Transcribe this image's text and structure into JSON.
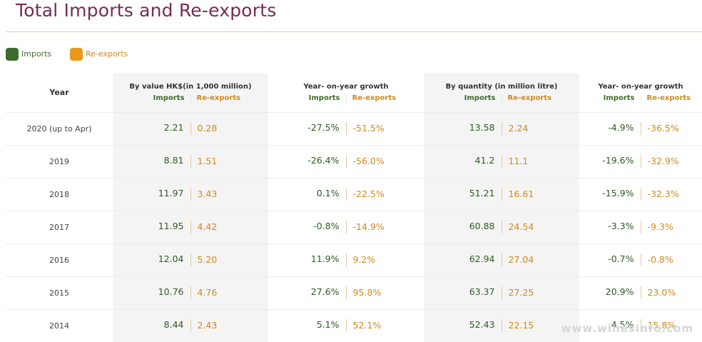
{
  "title": "Total Imports and Re-exports",
  "legend": {
    "imports_label": "Imports",
    "reexports_label": "Re-exports",
    "imports_color": "#3d6b2e",
    "reexports_color": "#e89a1e"
  },
  "table": {
    "year_header": "Year",
    "groups": [
      {
        "title": "By value HK$(in 1,000 million)",
        "sub_imports": "Imports",
        "sub_reexports": "Re-exports"
      },
      {
        "title": "Year- on-year growth",
        "sub_imports": "Imports",
        "sub_reexports": "Re-exports"
      },
      {
        "title": "By quantity (in million litre)",
        "sub_imports": "Imports",
        "sub_reexports": "Re-exports"
      },
      {
        "title": "Year- on-year growth",
        "sub_imports": "Imports",
        "sub_reexports": "Re-exports"
      }
    ],
    "rows": [
      {
        "year": "2020 (up to Apr)",
        "value_imp": "2.21",
        "value_rex": "0.28",
        "vgrow_imp": "-27.5%",
        "vgrow_rex": "-51.5%",
        "qty_imp": "13.58",
        "qty_rex": "2.24",
        "qgrow_imp": "-4.9%",
        "qgrow_rex": "-36.5%"
      },
      {
        "year": "2019",
        "value_imp": "8.81",
        "value_rex": "1.51",
        "vgrow_imp": "-26.4%",
        "vgrow_rex": "-56.0%",
        "qty_imp": "41.2",
        "qty_rex": "11.1",
        "qgrow_imp": "-19.6%",
        "qgrow_rex": "-32.9%"
      },
      {
        "year": "2018",
        "value_imp": "11.97",
        "value_rex": "3.43",
        "vgrow_imp": "0.1%",
        "vgrow_rex": "-22.5%",
        "qty_imp": "51.21",
        "qty_rex": "16.61",
        "qgrow_imp": "-15.9%",
        "qgrow_rex": "-32.3%"
      },
      {
        "year": "2017",
        "value_imp": "11.95",
        "value_rex": "4.42",
        "vgrow_imp": "-0.8%",
        "vgrow_rex": "-14.9%",
        "qty_imp": "60.88",
        "qty_rex": "24.54",
        "qgrow_imp": "-3.3%",
        "qgrow_rex": "-9.3%"
      },
      {
        "year": "2016",
        "value_imp": "12.04",
        "value_rex": "5.20",
        "vgrow_imp": "11.9%",
        "vgrow_rex": "9.2%",
        "qty_imp": "62.94",
        "qty_rex": "27.04",
        "qgrow_imp": "-0.7%",
        "qgrow_rex": "-0.8%"
      },
      {
        "year": "2015",
        "value_imp": "10.76",
        "value_rex": "4.76",
        "vgrow_imp": "27.6%",
        "vgrow_rex": "95.8%",
        "qty_imp": "63.37",
        "qty_rex": "27.25",
        "qgrow_imp": "20.9%",
        "qgrow_rex": "23.0%"
      },
      {
        "year": "2014",
        "value_imp": "8.44",
        "value_rex": "2.43",
        "vgrow_imp": "5.1%",
        "vgrow_rex": "52.1%",
        "qty_imp": "52.43",
        "qty_rex": "22.15",
        "qgrow_imp": "4.5%",
        "qgrow_rex": "15.8%"
      }
    ]
  },
  "watermark": "www.winesinfo.com",
  "chart_data": {
    "type": "table",
    "title": "Total Imports and Re-exports",
    "columns": [
      "Year",
      "By value HK$(in 1,000 million) Imports",
      "By value HK$(in 1,000 million) Re-exports",
      "Year- on-year growth Imports",
      "Year- on-year growth Re-exports",
      "By quantity (in million litre) Imports",
      "By quantity (in million litre) Re-exports",
      "Year- on-year growth Imports",
      "Year- on-year growth Re-exports"
    ],
    "rows": [
      [
        "2020 (up to Apr)",
        2.21,
        0.28,
        -27.5,
        -51.5,
        13.58,
        2.24,
        -4.9,
        -36.5
      ],
      [
        "2019",
        8.81,
        1.51,
        -26.4,
        -56.0,
        41.2,
        11.1,
        -19.6,
        -32.9
      ],
      [
        "2018",
        11.97,
        3.43,
        0.1,
        -22.5,
        51.21,
        16.61,
        -15.9,
        -32.3
      ],
      [
        "2017",
        11.95,
        4.42,
        -0.8,
        -14.9,
        60.88,
        24.54,
        -3.3,
        -9.3
      ],
      [
        "2016",
        12.04,
        5.2,
        11.9,
        9.2,
        62.94,
        27.04,
        -0.7,
        -0.8
      ],
      [
        "2015",
        10.76,
        4.76,
        27.6,
        95.8,
        63.37,
        27.25,
        20.9,
        23.0
      ],
      [
        "2014",
        8.44,
        2.43,
        5.1,
        52.1,
        52.43,
        22.15,
        4.5,
        15.8
      ]
    ],
    "legend": [
      "Imports",
      "Re-exports"
    ],
    "legend_position": "top-left"
  }
}
